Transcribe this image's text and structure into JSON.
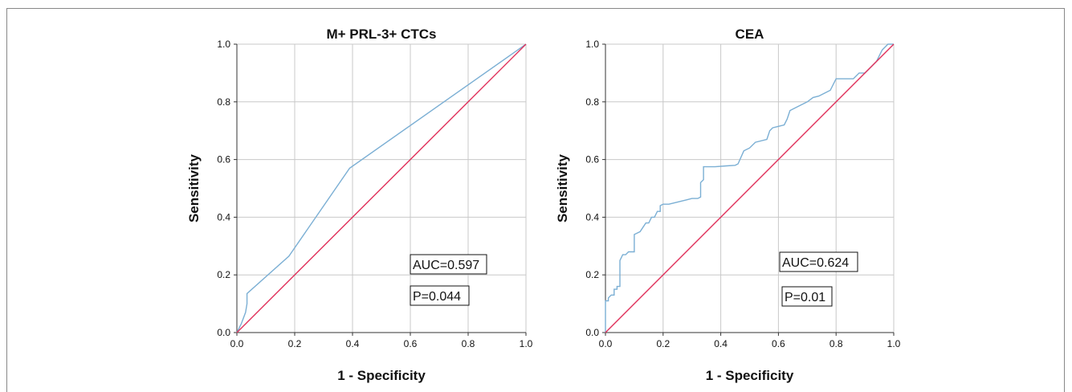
{
  "chart_data": [
    {
      "type": "line",
      "title": "M+ PRL-3+ CTCs",
      "xlabel": "1 - Specificity",
      "ylabel": "Sensitivity",
      "xlim": [
        0,
        1
      ],
      "ylim": [
        0,
        1
      ],
      "xticks": [
        "0.0",
        "0.2",
        "0.4",
        "0.6",
        "0.8",
        "1.0"
      ],
      "yticks": [
        "0.0",
        "0.2",
        "0.4",
        "0.6",
        "0.8",
        "1.0"
      ],
      "grid": true,
      "annotations": [
        "AUC=0.597",
        "P=0.044"
      ],
      "series": [
        {
          "color": "#7bafd4",
          "x": [
            0,
            0.015,
            0.03,
            0.035,
            0.035,
            0.18,
            0.39,
            1.0
          ],
          "y": [
            0,
            0.03,
            0.07,
            0.1,
            0.135,
            0.265,
            0.57,
            1.0
          ]
        },
        {
          "color": "#e0305a",
          "x": [
            0,
            1
          ],
          "y": [
            0,
            1
          ]
        }
      ]
    },
    {
      "type": "line",
      "title": "CEA",
      "xlabel": "1 - Specificity",
      "ylabel": "Sensitivity",
      "xlim": [
        0,
        1
      ],
      "ylim": [
        0,
        1
      ],
      "xticks": [
        "0.0",
        "0.2",
        "0.4",
        "0.6",
        "0.8",
        "1.0"
      ],
      "yticks": [
        "0.0",
        "0.2",
        "0.4",
        "0.6",
        "0.8",
        "1.0"
      ],
      "grid": true,
      "annotations": [
        "AUC=0.624",
        "P=0.01"
      ],
      "series": [
        {
          "color": "#7bafd4",
          "x": [
            0,
            0,
            0.01,
            0.01,
            0.02,
            0.03,
            0.03,
            0.04,
            0.04,
            0.05,
            0.05,
            0.06,
            0.07,
            0.08,
            0.1,
            0.1,
            0.12,
            0.14,
            0.15,
            0.16,
            0.17,
            0.18,
            0.19,
            0.19,
            0.2,
            0.22,
            0.24,
            0.26,
            0.28,
            0.3,
            0.32,
            0.33,
            0.33,
            0.34,
            0.34,
            0.38,
            0.42,
            0.45,
            0.46,
            0.48,
            0.5,
            0.52,
            0.56,
            0.57,
            0.58,
            0.6,
            0.62,
            0.63,
            0.64,
            0.66,
            0.68,
            0.7,
            0.72,
            0.74,
            0.76,
            0.78,
            0.8,
            0.82,
            0.86,
            0.87,
            0.88,
            0.9,
            0.92,
            0.94,
            0.96,
            0.97,
            0.98,
            1.0
          ],
          "y": [
            0,
            0.11,
            0.11,
            0.12,
            0.13,
            0.13,
            0.15,
            0.15,
            0.16,
            0.16,
            0.25,
            0.27,
            0.27,
            0.28,
            0.28,
            0.34,
            0.35,
            0.38,
            0.38,
            0.4,
            0.4,
            0.42,
            0.42,
            0.44,
            0.445,
            0.445,
            0.45,
            0.455,
            0.46,
            0.465,
            0.465,
            0.47,
            0.52,
            0.53,
            0.575,
            0.575,
            0.578,
            0.58,
            0.585,
            0.63,
            0.64,
            0.66,
            0.67,
            0.7,
            0.71,
            0.715,
            0.72,
            0.74,
            0.77,
            0.78,
            0.79,
            0.8,
            0.815,
            0.82,
            0.83,
            0.84,
            0.88,
            0.88,
            0.88,
            0.89,
            0.9,
            0.9,
            0.92,
            0.94,
            0.98,
            0.99,
            1.0,
            1.0
          ]
        },
        {
          "color": "#e0305a",
          "x": [
            0,
            1
          ],
          "y": [
            0,
            1
          ]
        }
      ]
    }
  ]
}
